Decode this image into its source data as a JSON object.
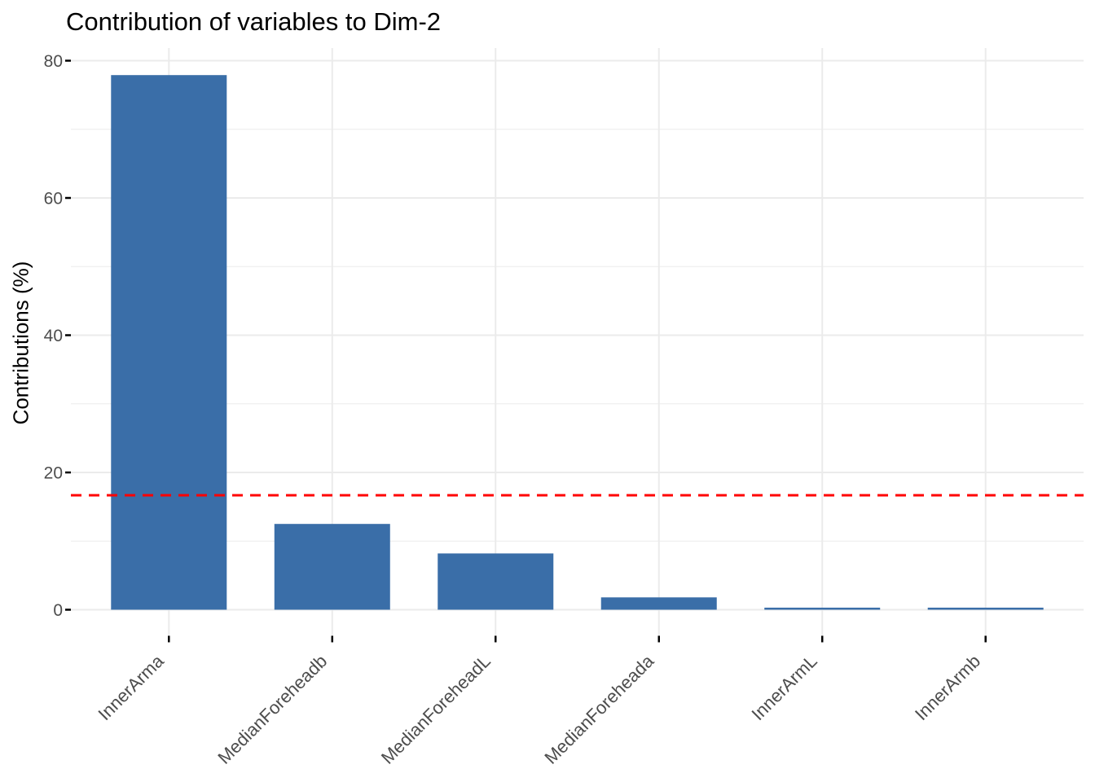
{
  "chart_data": {
    "type": "bar",
    "title": "Contribution of variables to Dim-2",
    "xlabel": "",
    "ylabel": "Contributions (%)",
    "categories": [
      "InnerArma",
      "MedianForeheadb",
      "MedianForeheadL",
      "MedianForeheada",
      "InnerArmL",
      "InnerArmb"
    ],
    "values": [
      77.9,
      12.5,
      8.2,
      1.8,
      0.3,
      0.3
    ],
    "yticks": [
      0,
      20,
      40,
      60,
      80
    ],
    "minor_gridlines": [
      10,
      30,
      50,
      70
    ],
    "ylim": [
      0,
      81.8
    ],
    "grid": true,
    "legend": "none",
    "reference_line": {
      "value": 16.67,
      "style": "dashed",
      "color": "#FF0000"
    },
    "colors": {
      "bar_fill": "#3A6EA8",
      "grid": "#EBEBEB",
      "axis_text": "#4D4D4D",
      "tick_mark": "#000000",
      "title_text": "#000000",
      "background": "#FFFFFF"
    }
  }
}
